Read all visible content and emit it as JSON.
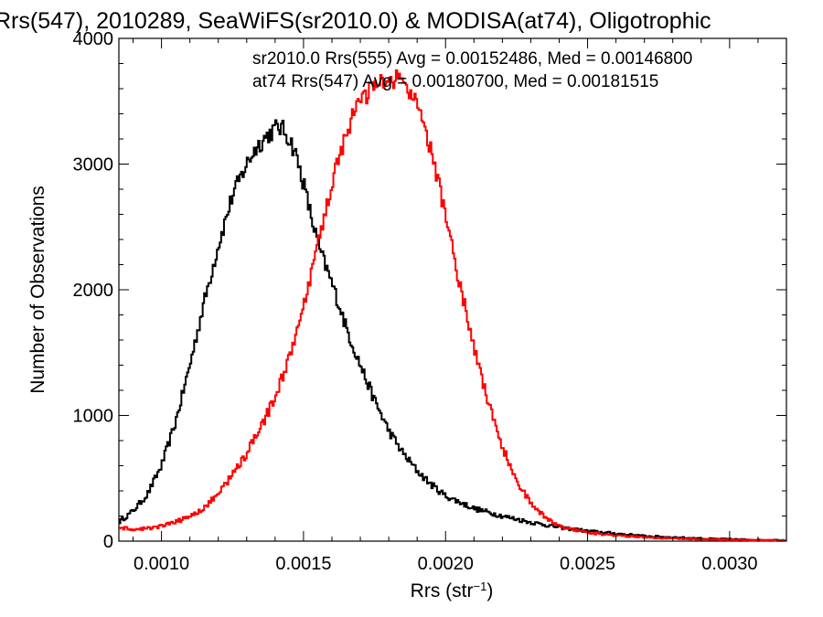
{
  "chart_data": {
    "type": "line",
    "title": "Rrs(547), 2010289, SeaWiFS(sr2010.0) & MODISA(at74), Oligotrophic",
    "xlabel_main": "Rrs (str",
    "xlabel_sup": "−1",
    "xlabel_close": ")",
    "ylabel": "Number of Observations",
    "xlim": [
      0.00085,
      0.0032
    ],
    "ylim": [
      0,
      4000
    ],
    "x_ticks": [
      0.001,
      0.0015,
      0.002,
      0.0025,
      0.003
    ],
    "x_tick_labels": [
      "0.0010",
      "0.0015",
      "0.0020",
      "0.0025",
      "0.0030"
    ],
    "y_ticks": [
      0,
      1000,
      2000,
      3000,
      4000
    ],
    "y_tick_labels": [
      "0",
      "1000",
      "2000",
      "3000",
      "4000"
    ],
    "legend_position": "top-right",
    "series": [
      {
        "legend": "sr2010.0 Rrs(555) Avg = 0.00152486, Med = 0.00146800",
        "color": "#000000",
        "x": [
          0.00085,
          0.0009,
          0.00095,
          0.001,
          0.00105,
          0.0011,
          0.00115,
          0.0012,
          0.00125,
          0.0013,
          0.00133,
          0.00136,
          0.00139,
          0.00141,
          0.00143,
          0.00145,
          0.00147,
          0.0015,
          0.00153,
          0.00156,
          0.0016,
          0.00163,
          0.00165,
          0.0017,
          0.00175,
          0.0018,
          0.00185,
          0.0019,
          0.00195,
          0.002,
          0.0021,
          0.0022,
          0.0023,
          0.0024,
          0.0025,
          0.0026,
          0.0027,
          0.0028,
          0.0029,
          0.003,
          0.0031,
          0.0032
        ],
        "y": [
          150,
          240,
          370,
          600,
          950,
          1400,
          1900,
          2350,
          2750,
          3000,
          3120,
          3200,
          3260,
          3300,
          3270,
          3200,
          3100,
          2850,
          2550,
          2300,
          2050,
          1850,
          1700,
          1400,
          1120,
          880,
          700,
          560,
          450,
          360,
          260,
          200,
          150,
          110,
          80,
          60,
          40,
          30,
          20,
          15,
          10,
          8
        ]
      },
      {
        "legend": "at74 Rrs(547) Avg = 0.00180700, Med = 0.00181515",
        "color": "#ff0000",
        "x": [
          0.00085,
          0.0009,
          0.00095,
          0.001,
          0.00105,
          0.0011,
          0.00115,
          0.0012,
          0.00125,
          0.0013,
          0.00135,
          0.0014,
          0.00145,
          0.0015,
          0.00155,
          0.0016,
          0.00165,
          0.0017,
          0.00175,
          0.0018,
          0.00183,
          0.00186,
          0.0019,
          0.00195,
          0.002,
          0.00205,
          0.0021,
          0.00215,
          0.0022,
          0.00225,
          0.0023,
          0.00235,
          0.0024,
          0.0025,
          0.0026,
          0.0027,
          0.0028,
          0.0029,
          0.003,
          0.0031,
          0.0032
        ],
        "y": [
          110,
          90,
          100,
          120,
          150,
          200,
          260,
          380,
          530,
          700,
          900,
          1150,
          1450,
          1850,
          2350,
          2850,
          3250,
          3500,
          3620,
          3660,
          3680,
          3640,
          3450,
          3100,
          2600,
          2050,
          1550,
          1100,
          750,
          480,
          300,
          190,
          120,
          70,
          45,
          30,
          22,
          15,
          10,
          8,
          5
        ]
      }
    ]
  }
}
